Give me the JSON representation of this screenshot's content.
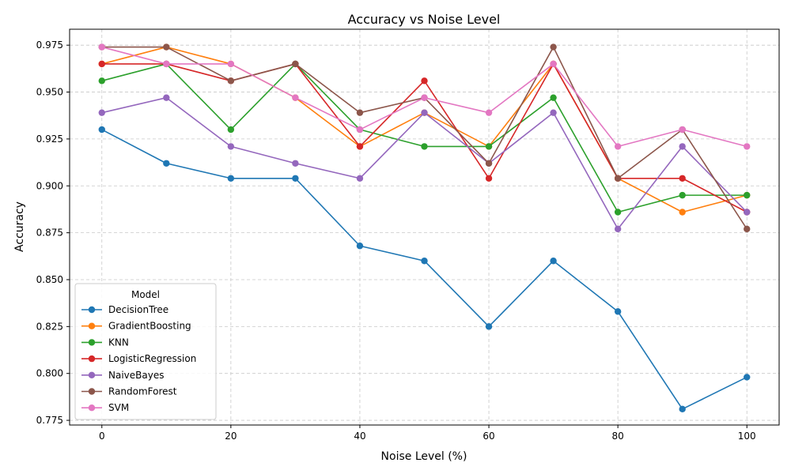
{
  "chart_data": {
    "type": "line",
    "title": "Accuracy vs Noise Level",
    "xlabel": "Noise Level (%)",
    "ylabel": "Accuracy",
    "x": [
      0,
      10,
      20,
      30,
      40,
      50,
      60,
      70,
      80,
      90,
      100
    ],
    "xlim": [
      -5,
      105
    ],
    "ylim": [
      0.7725,
      0.9835
    ],
    "xticks": [
      0,
      20,
      40,
      60,
      80,
      100
    ],
    "yticks": [
      0.775,
      0.8,
      0.825,
      0.85,
      0.875,
      0.9,
      0.925,
      0.95,
      0.975
    ],
    "ytick_labels": [
      "0.775",
      "0.800",
      "0.825",
      "0.850",
      "0.875",
      "0.900",
      "0.925",
      "0.950",
      "0.975"
    ],
    "grid": true,
    "legend": {
      "title": "Model",
      "placement": "lower-left"
    },
    "series": [
      {
        "name": "DecisionTree",
        "color": "#1f77b4",
        "values": [
          0.93,
          0.912,
          0.904,
          0.904,
          0.868,
          0.86,
          0.825,
          0.86,
          0.833,
          0.781,
          0.798
        ]
      },
      {
        "name": "GradientBoosting",
        "color": "#ff7f0e",
        "values": [
          0.965,
          0.974,
          0.965,
          0.947,
          0.921,
          0.939,
          0.921,
          0.965,
          0.904,
          0.886,
          0.895
        ]
      },
      {
        "name": "KNN",
        "color": "#2ca02c",
        "values": [
          0.956,
          0.965,
          0.93,
          0.965,
          0.93,
          0.921,
          0.921,
          0.947,
          0.886,
          0.895,
          0.895
        ]
      },
      {
        "name": "LogisticRegression",
        "color": "#d62728",
        "values": [
          0.965,
          0.965,
          0.956,
          0.965,
          0.921,
          0.956,
          0.904,
          0.965,
          0.904,
          0.904,
          0.886
        ]
      },
      {
        "name": "NaiveBayes",
        "color": "#9467bd",
        "values": [
          0.939,
          0.947,
          0.921,
          0.912,
          0.904,
          0.939,
          0.912,
          0.939,
          0.877,
          0.921,
          0.886
        ]
      },
      {
        "name": "RandomForest",
        "color": "#8c564b",
        "values": [
          0.974,
          0.974,
          0.956,
          0.965,
          0.939,
          0.947,
          0.912,
          0.974,
          0.904,
          0.93,
          0.877
        ]
      },
      {
        "name": "SVM",
        "color": "#e377c2",
        "values": [
          0.974,
          0.965,
          0.965,
          0.947,
          0.93,
          0.947,
          0.939,
          0.965,
          0.921,
          0.93,
          0.921
        ]
      }
    ]
  }
}
